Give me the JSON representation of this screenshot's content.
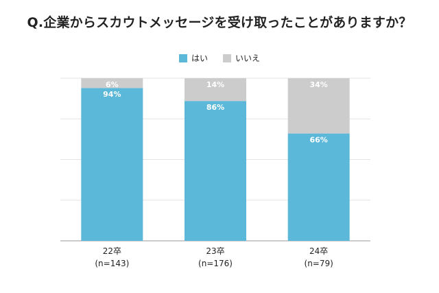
{
  "chart_data": {
    "type": "bar",
    "stacked": true,
    "percent": true,
    "title": "Q.企業からスカウトメッセージを受け取ったことがありますか？",
    "categories": [
      "22卒",
      "23卒",
      "24卒"
    ],
    "category_notes": [
      "(n=143)",
      "(n=176)",
      "(n=79)"
    ],
    "series": [
      {
        "name": "はい",
        "values": [
          94,
          86,
          66
        ],
        "labels": [
          "94%",
          "86%",
          "66%"
        ],
        "color": "#5bb8d9"
      },
      {
        "name": "いいえ",
        "values": [
          6,
          14,
          34
        ],
        "labels": [
          "6%",
          "14%",
          "34%"
        ],
        "color": "#cccccc"
      }
    ],
    "ylim": [
      0,
      100
    ],
    "grid": true,
    "legend_position": "top-center"
  }
}
